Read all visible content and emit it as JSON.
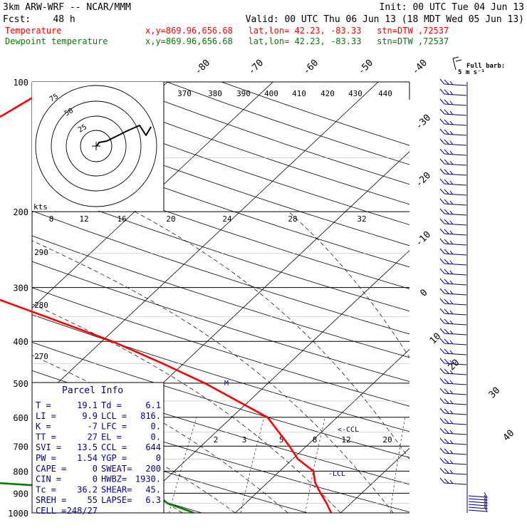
{
  "header": {
    "model": "3km ARW-WRF -- NCAR/MMM",
    "init": "Init: 00 UTC Tue 04 Jun 13",
    "fcst": "Fcst:    48 h",
    "valid": "Valid: 00 UTC Thu 06 Jun 13 (18 MDT Wed 05 Jun 13)",
    "temp_label": "Temperature",
    "dew_label": "Dewpoint temperature",
    "loc_info": "x,y=869.96,656.68   lat,lon= 42.23, -83.33   stn=DTW ,72537"
  },
  "colors": {
    "temperature": "#ff0000",
    "dewpoint": "#008000",
    "info": "#000099",
    "grid": "#000000"
  },
  "barb_key": {
    "line1": "Full barb:",
    "line2": "5 m s⁻¹"
  },
  "hodograph": {
    "units": "kts",
    "ring_labels": [
      "25",
      "50",
      "75"
    ]
  },
  "parcel_info": {
    "title": "Parcel Info",
    "rows": [
      {
        "l1": "T   =",
        "v1": "19.1",
        "l2": "Td =",
        "v2": "6.1"
      },
      {
        "l1": "LI  =",
        "v1": "9.9",
        "l2": "LCL =",
        "v2": "816."
      },
      {
        "l1": "K   =",
        "v1": "-7",
        "l2": "LFC =",
        "v2": "0."
      },
      {
        "l1": "TT  =",
        "v1": "27",
        "l2": "EL  =",
        "v2": "0."
      },
      {
        "l1": "SVI =",
        "v1": "13.5",
        "l2": "CCL =",
        "v2": "644"
      },
      {
        "l1": "PW  =",
        "v1": "1.54",
        "l2": "YGP =",
        "v2": "0"
      },
      {
        "l1": "CAPE =",
        "v1": "0",
        "l2": "SWEAT=",
        "v2": "200"
      },
      {
        "l1": "CIN  =",
        "v1": "0",
        "l2": "HWBZ=",
        "v2": "1930."
      },
      {
        "l1": "Tc  =",
        "v1": "36.2",
        "l2": "SHEAR=",
        "v2": "45."
      },
      {
        "l1": "SREH =",
        "v1": "55",
        "l2": "LAPSE=",
        "v2": "6.3"
      },
      {
        "l1": "CELL =",
        "v1": "248/27",
        "l2": "",
        "v2": ""
      }
    ]
  },
  "annotations": {
    "lcl": "-LCL",
    "ccl": "<-CCL",
    "m": "M"
  },
  "chart_data": {
    "type": "line",
    "title": "",
    "ylabel": "",
    "xlabel": "",
    "pressure_levels": [
      100,
      200,
      300,
      400,
      500,
      600,
      700,
      800,
      900,
      1000
    ],
    "pressure_labels": [
      "100",
      "200",
      "300",
      "400",
      "500",
      "600",
      "700",
      "800",
      "900",
      "1000"
    ],
    "isotherm_labels": [
      "-80",
      "-70",
      "-60",
      "-50",
      "-40",
      "-30",
      "-20",
      "-10",
      "0",
      "10",
      "20",
      "30",
      "40"
    ],
    "theta_labels": [
      "370",
      "380",
      "390",
      "400",
      "410",
      "420",
      "430",
      "440"
    ],
    "theta_low_labels": [
      "290",
      "280",
      "270"
    ],
    "mixing_ratio_labels": [
      "2",
      "3",
      "5",
      "8",
      "12",
      "20"
    ],
    "upper_scale_labels": [
      "8",
      "12",
      "16",
      "20",
      "24",
      "28",
      "32"
    ],
    "series": [
      {
        "name": "Temperature",
        "points": [
          [
            100,
            -50.3
          ],
          [
            120,
            -52.3
          ],
          [
            150,
            -60.4
          ],
          [
            175,
            -60.0
          ],
          [
            200,
            -57.9
          ],
          [
            250,
            -47.5
          ],
          [
            300,
            -38.3
          ],
          [
            350,
            -27.9
          ],
          [
            400,
            -19.0
          ],
          [
            450,
            -12.0
          ],
          [
            500,
            -6.0
          ],
          [
            600,
            3.4
          ],
          [
            700,
            8.4
          ],
          [
            750,
            10.5
          ],
          [
            800,
            13.2
          ],
          [
            850,
            14.5
          ],
          [
            900,
            16.1
          ],
          [
            950,
            17.7
          ],
          [
            1000,
            19.1
          ]
        ]
      },
      {
        "name": "Dewpoint temperature",
        "points": [
          [
            100,
            -75.8
          ],
          [
            150,
            -77.4
          ],
          [
            200,
            -82.0
          ],
          [
            250,
            -76.3
          ],
          [
            300,
            -69.2
          ],
          [
            340,
            -57.3
          ],
          [
            370,
            -45.4
          ],
          [
            400,
            -45.2
          ],
          [
            450,
            -59.8
          ],
          [
            500,
            -41.4
          ],
          [
            580,
            -23.6
          ],
          [
            630,
            -26.0
          ],
          [
            700,
            -35.3
          ],
          [
            750,
            -42.6
          ],
          [
            800,
            -43.5
          ],
          [
            850,
            -16.3
          ],
          [
            900,
            0.4
          ],
          [
            950,
            2.6
          ],
          [
            1000,
            6.1
          ]
        ]
      }
    ],
    "wind_barbs_present": true
  }
}
